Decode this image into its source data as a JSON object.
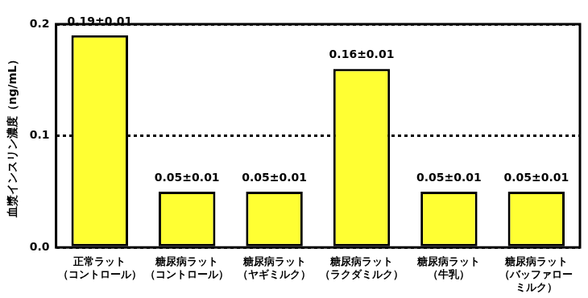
{
  "chart_data": {
    "type": "bar",
    "y_label": "血漿インスリン濃度（ng/mL）",
    "categories": [
      [
        "正常ラット",
        "（コントロール）"
      ],
      [
        "糖尿病ラット",
        "（コントロール）"
      ],
      [
        "糖尿病ラット",
        "（ヤギミルク）"
      ],
      [
        "糖尿病ラット",
        "（ラクダミルク）"
      ],
      [
        "糖尿病ラット",
        "（牛乳）"
      ],
      [
        "糖尿病ラット",
        "（バッファロー",
        "ミルク）"
      ]
    ],
    "values": [
      0.19,
      0.05,
      0.05,
      0.16,
      0.05,
      0.05
    ],
    "value_labels": [
      "0.19±0.01",
      "0.05±0.01",
      "0.05±0.01",
      "0.16±0.01",
      "0.05±0.01",
      "0.05±0.01"
    ],
    "color": "#ffff33",
    "ylim": [
      0,
      0.2
    ],
    "yticks": [
      {
        "value": 0,
        "label": "0.0"
      },
      0.1,
      0.2
    ],
    "grid": true,
    "data_labels": true
  }
}
